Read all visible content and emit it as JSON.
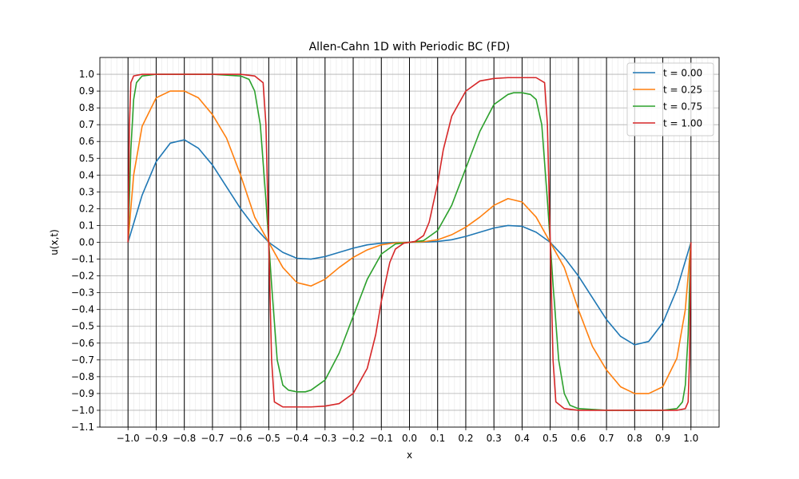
{
  "chart_data": {
    "type": "line",
    "title": "Allen-Cahn 1D with Periodic BC (FD)",
    "xlabel": "x",
    "ylabel": "u(x,t)",
    "xlim": [
      -1.1,
      1.1
    ],
    "ylim": [
      -1.1,
      1.1
    ],
    "x_ticks": [
      -1.0,
      -0.9,
      -0.8,
      -0.7,
      -0.6,
      -0.5,
      -0.4,
      -0.3,
      -0.2,
      -0.1,
      0.0,
      0.1,
      0.2,
      0.3,
      0.4,
      0.5,
      0.6,
      0.7,
      0.8,
      0.9,
      1.0
    ],
    "x_tick_labels": [
      "−1.0",
      "−0.9",
      "−0.8",
      "−0.7",
      "−0.6",
      "−0.5",
      "−0.4",
      "−0.3",
      "−0.2",
      "−0.1",
      "0.0",
      "0.1",
      "0.2",
      "0.3",
      "0.4",
      "0.5",
      "0.6",
      "0.7",
      "0.8",
      "0.9",
      "1.0"
    ],
    "y_ticks": [
      -1.1,
      -1.0,
      -0.9,
      -0.8,
      -0.7,
      -0.6,
      -0.5,
      -0.4,
      -0.3,
      -0.2,
      -0.1,
      0.0,
      0.1,
      0.2,
      0.3,
      0.4,
      0.5,
      0.6,
      0.7,
      0.8,
      0.9,
      1.0
    ],
    "y_tick_labels": [
      "−1.1",
      "−1.0",
      "−0.9",
      "−0.8",
      "−0.7",
      "−0.6",
      "−0.5",
      "−0.4",
      "−0.3",
      "−0.2",
      "−0.1",
      "0.0",
      "0.1",
      "0.2",
      "0.3",
      "0.4",
      "0.5",
      "0.6",
      "0.7",
      "0.8",
      "0.9",
      "1.0"
    ],
    "grid": true,
    "minor_grid": true,
    "vertical_lines": [
      -1.0,
      -0.9,
      -0.8,
      -0.7,
      -0.6,
      -0.5,
      -0.4,
      -0.3,
      -0.2,
      -0.1,
      0.0,
      0.1,
      0.2,
      0.3,
      0.4,
      0.5,
      0.6,
      0.7,
      0.8,
      0.9,
      1.0
    ],
    "legend_position": "top-right",
    "series": [
      {
        "name": "t = 0.00",
        "color": "#1f77b4",
        "x": [
          -1.0,
          -0.95,
          -0.9,
          -0.85,
          -0.8,
          -0.75,
          -0.7,
          -0.65,
          -0.6,
          -0.55,
          -0.5,
          -0.45,
          -0.4,
          -0.35,
          -0.3,
          -0.25,
          -0.2,
          -0.15,
          -0.1,
          -0.05,
          0.0,
          0.05,
          0.1,
          0.15,
          0.2,
          0.25,
          0.3,
          0.35,
          0.4,
          0.45,
          0.5,
          0.55,
          0.6,
          0.65,
          0.7,
          0.75,
          0.8,
          0.85,
          0.9,
          0.95,
          1.0
        ],
        "y": [
          0.0,
          0.28,
          0.48,
          0.59,
          0.61,
          0.56,
          0.46,
          0.33,
          0.2,
          0.09,
          0.0,
          -0.06,
          -0.095,
          -0.1,
          -0.085,
          -0.06,
          -0.035,
          -0.015,
          -0.005,
          -0.001,
          0.0,
          0.001,
          0.005,
          0.015,
          0.035,
          0.06,
          0.085,
          0.1,
          0.095,
          0.06,
          0.0,
          -0.09,
          -0.2,
          -0.33,
          -0.46,
          -0.56,
          -0.61,
          -0.59,
          -0.48,
          -0.28,
          0.0
        ]
      },
      {
        "name": "t = 0.25",
        "color": "#ff7f0e",
        "x": [
          -1.0,
          -0.98,
          -0.95,
          -0.9,
          -0.85,
          -0.8,
          -0.75,
          -0.7,
          -0.65,
          -0.6,
          -0.55,
          -0.5,
          -0.45,
          -0.4,
          -0.35,
          -0.3,
          -0.25,
          -0.2,
          -0.15,
          -0.1,
          -0.05,
          0.0,
          0.05,
          0.1,
          0.15,
          0.2,
          0.25,
          0.3,
          0.35,
          0.4,
          0.45,
          0.5,
          0.55,
          0.6,
          0.65,
          0.7,
          0.75,
          0.8,
          0.85,
          0.9,
          0.95,
          0.98,
          1.0
        ],
        "y": [
          0.0,
          0.4,
          0.69,
          0.86,
          0.9,
          0.9,
          0.86,
          0.76,
          0.62,
          0.4,
          0.15,
          0.0,
          -0.15,
          -0.24,
          -0.26,
          -0.22,
          -0.15,
          -0.09,
          -0.045,
          -0.015,
          -0.003,
          0.0,
          0.003,
          0.015,
          0.045,
          0.09,
          0.15,
          0.22,
          0.26,
          0.24,
          0.15,
          0.0,
          -0.15,
          -0.4,
          -0.62,
          -0.76,
          -0.86,
          -0.9,
          -0.9,
          -0.86,
          -0.69,
          -0.4,
          0.0
        ]
      },
      {
        "name": "t = 0.75",
        "color": "#2ca02c",
        "x": [
          -1.0,
          -0.99,
          -0.98,
          -0.97,
          -0.95,
          -0.9,
          -0.8,
          -0.7,
          -0.6,
          -0.57,
          -0.55,
          -0.53,
          -0.51,
          -0.5,
          -0.49,
          -0.47,
          -0.45,
          -0.43,
          -0.4,
          -0.37,
          -0.35,
          -0.3,
          -0.25,
          -0.2,
          -0.15,
          -0.1,
          -0.05,
          0.0,
          0.05,
          0.1,
          0.15,
          0.2,
          0.25,
          0.3,
          0.35,
          0.37,
          0.4,
          0.43,
          0.45,
          0.47,
          0.49,
          0.5,
          0.51,
          0.53,
          0.55,
          0.57,
          0.6,
          0.7,
          0.8,
          0.9,
          0.95,
          0.97,
          0.98,
          0.99,
          1.0
        ],
        "y": [
          0.0,
          0.55,
          0.85,
          0.95,
          0.99,
          1.0,
          1.0,
          1.0,
          0.99,
          0.97,
          0.9,
          0.7,
          0.25,
          0.0,
          -0.25,
          -0.7,
          -0.85,
          -0.88,
          -0.89,
          -0.89,
          -0.88,
          -0.82,
          -0.66,
          -0.44,
          -0.22,
          -0.07,
          -0.01,
          0.0,
          0.01,
          0.07,
          0.22,
          0.44,
          0.66,
          0.82,
          0.88,
          0.89,
          0.89,
          0.88,
          0.85,
          0.7,
          0.25,
          0.0,
          -0.25,
          -0.7,
          -0.9,
          -0.97,
          -0.99,
          -1.0,
          -1.0,
          -1.0,
          -0.99,
          -0.95,
          -0.85,
          -0.55,
          0.0
        ]
      },
      {
        "name": "t = 1.00",
        "color": "#d62728",
        "x": [
          -1.0,
          -0.995,
          -0.99,
          -0.98,
          -0.95,
          -0.9,
          -0.8,
          -0.7,
          -0.6,
          -0.55,
          -0.52,
          -0.51,
          -0.5,
          -0.49,
          -0.48,
          -0.45,
          -0.4,
          -0.35,
          -0.3,
          -0.25,
          -0.2,
          -0.15,
          -0.12,
          -0.1,
          -0.07,
          -0.05,
          -0.02,
          0.0,
          0.02,
          0.05,
          0.07,
          0.1,
          0.12,
          0.15,
          0.2,
          0.25,
          0.3,
          0.35,
          0.4,
          0.45,
          0.48,
          0.49,
          0.5,
          0.51,
          0.52,
          0.55,
          0.6,
          0.7,
          0.8,
          0.9,
          0.95,
          0.98,
          0.99,
          0.995,
          1.0
        ],
        "y": [
          0.0,
          0.7,
          0.95,
          0.99,
          1.0,
          1.0,
          1.0,
          1.0,
          1.0,
          0.99,
          0.95,
          0.7,
          0.0,
          -0.7,
          -0.95,
          -0.98,
          -0.98,
          -0.98,
          -0.975,
          -0.96,
          -0.9,
          -0.75,
          -0.55,
          -0.35,
          -0.12,
          -0.04,
          -0.005,
          0.0,
          0.005,
          0.04,
          0.12,
          0.35,
          0.55,
          0.75,
          0.9,
          0.96,
          0.975,
          0.98,
          0.98,
          0.98,
          0.95,
          0.7,
          0.0,
          -0.7,
          -0.95,
          -0.99,
          -1.0,
          -1.0,
          -1.0,
          -1.0,
          -1.0,
          -0.99,
          -0.95,
          -0.7,
          0.0
        ]
      }
    ]
  }
}
